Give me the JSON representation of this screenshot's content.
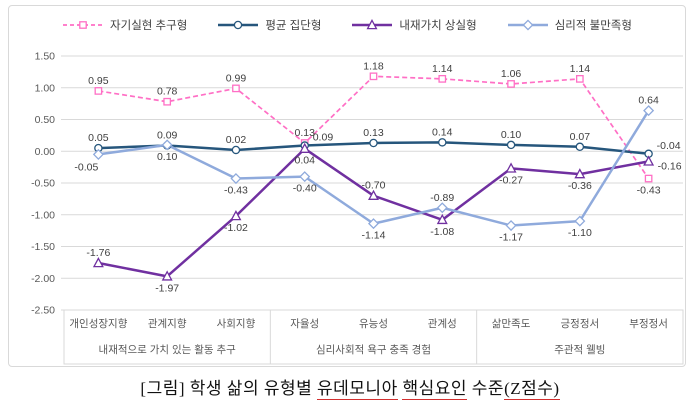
{
  "caption": {
    "parts": [
      {
        "text": "[그림] 학생 삶의 유형별 ",
        "underline": false
      },
      {
        "text": "유데모니아",
        "underline": true
      },
      {
        "text": " ",
        "underline": false
      },
      {
        "text": "핵심요인",
        "underline": true
      },
      {
        "text": " 수준",
        "underline": false
      },
      {
        "text": "(Z점수)",
        "underline": true
      }
    ]
  },
  "chart_data": {
    "type": "line",
    "title": "",
    "xlabel": "",
    "ylabel": "",
    "value_unit": "Z-score",
    "categories": [
      "개인성장지향",
      "관계지향",
      "사회지향",
      "자율성",
      "유능성",
      "관계성",
      "삶만족도",
      "긍정정서",
      "부정정서"
    ],
    "category_groups": [
      {
        "label": "내재적으로 가치 있는 활동 추구",
        "span": 3
      },
      {
        "label": "심리사회적 욕구 충족 경험",
        "span": 3
      },
      {
        "label": "주관적 웰빙",
        "span": 3
      }
    ],
    "series": [
      {
        "name": "자기실현 추구형",
        "color": "#ff6fc5",
        "marker": "square",
        "dashed": true,
        "values": [
          0.95,
          0.78,
          0.99,
          0.13,
          1.18,
          1.14,
          1.06,
          1.14,
          -0.43
        ],
        "label_pos": [
          "a",
          "a",
          "a",
          "a",
          "a",
          "a",
          "a",
          "a",
          "b"
        ]
      },
      {
        "name": "평균 집단형",
        "color": "#26567c",
        "marker": "circle",
        "dashed": false,
        "values": [
          0.05,
          0.09,
          0.02,
          0.09,
          0.13,
          0.14,
          0.1,
          0.07,
          -0.04
        ],
        "label_pos": [
          "a",
          "a",
          "a",
          "ar",
          "a",
          "a",
          "a",
          "a",
          "ar"
        ]
      },
      {
        "name": "내재가치 상실형",
        "color": "#7030a0",
        "marker": "triangle",
        "dashed": false,
        "values": [
          -1.76,
          -1.97,
          -1.02,
          0.04,
          -0.7,
          -1.08,
          -0.27,
          -0.36,
          -0.16
        ],
        "label_pos": [
          "a",
          "b",
          "b",
          "b",
          "a",
          "b",
          "b",
          "b",
          "r"
        ]
      },
      {
        "name": "심리적 불만족형",
        "color": "#8faadc",
        "marker": "diamond",
        "dashed": false,
        "values": [
          -0.05,
          0.1,
          -0.43,
          -0.4,
          -1.14,
          -0.89,
          -1.17,
          -1.1,
          0.64
        ],
        "label_pos": [
          "bl",
          "b",
          "b",
          "b",
          "b",
          "a",
          "b",
          "b",
          "a"
        ]
      }
    ],
    "y_ticks": [
      1.5,
      1.0,
      0.5,
      0.0,
      -0.5,
      -1.0,
      -1.5,
      -2.0,
      -2.5
    ],
    "ylim": [
      -2.5,
      1.5
    ],
    "grid": true,
    "legend_position": "top",
    "colors": {
      "gridline": "#d9d9d9",
      "axis_text": "#595959",
      "data_label": "#404040",
      "frame_border": "#d9d9d9",
      "caption_underline": "#d22f2f"
    }
  }
}
